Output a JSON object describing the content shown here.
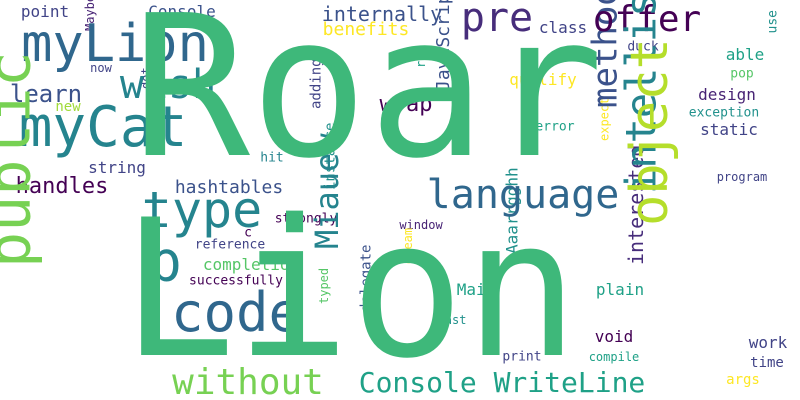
{
  "colors": {
    "background": "#ffffff",
    "palette": [
      "#3eb87a",
      "#30678d",
      "#25848e",
      "#440154",
      "#b5de2b",
      "#77d153",
      "#3b528b",
      "#472d7b",
      "#1fa187",
      "#56c667",
      "#fde725",
      "#a0da39",
      "#414487",
      "#21918c",
      "#482475"
    ]
  },
  "words": [
    {
      "text": "Roar"
    },
    {
      "text": "Lion"
    },
    {
      "text": "myLion"
    },
    {
      "text": "myCat"
    },
    {
      "text": "language"
    },
    {
      "text": "object"
    },
    {
      "text": "code"
    },
    {
      "text": "type"
    },
    {
      "text": "public"
    },
    {
      "text": "strong"
    },
    {
      "text": "p"
    },
    {
      "text": "intellisense"
    },
    {
      "text": "offer"
    },
    {
      "text": "method"
    },
    {
      "text": "pre"
    },
    {
      "text": "without"
    },
    {
      "text": "Console WriteLine"
    },
    {
      "text": "Miauew"
    },
    {
      "text": "wish"
    },
    {
      "text": "internally"
    },
    {
      "text": "handles"
    },
    {
      "text": "hashtables"
    },
    {
      "text": "learn"
    },
    {
      "text": "JavaScript"
    },
    {
      "text": "interested"
    },
    {
      "text": "benefits"
    },
    {
      "text": "wrap"
    },
    {
      "text": "design"
    },
    {
      "text": "Console"
    },
    {
      "text": "point"
    },
    {
      "text": "completion"
    },
    {
      "text": "Main"
    },
    {
      "text": "plain"
    },
    {
      "text": "static"
    },
    {
      "text": "qualify"
    },
    {
      "text": "work"
    },
    {
      "text": "void"
    },
    {
      "text": "time"
    },
    {
      "text": "args"
    },
    {
      "text": "delegate"
    },
    {
      "text": "instance"
    },
    {
      "text": "Aaarrgghh"
    },
    {
      "text": "class"
    },
    {
      "text": "able"
    },
    {
      "text": "string"
    },
    {
      "text": "exception"
    },
    {
      "text": "adding"
    },
    {
      "text": "duck"
    },
    {
      "text": "pop"
    },
    {
      "text": "error"
    },
    {
      "text": "new"
    },
    {
      "text": "now"
    },
    {
      "text": "dot"
    },
    {
      "text": "Maybe"
    },
    {
      "text": "use"
    },
    {
      "text": "run"
    },
    {
      "text": "expect"
    },
    {
      "text": "program"
    },
    {
      "text": "window"
    },
    {
      "text": "strongly"
    },
    {
      "text": "reference"
    },
    {
      "text": "successfully"
    },
    {
      "text": "hit"
    },
    {
      "text": "dream"
    },
    {
      "text": "typed"
    },
    {
      "text": "cast"
    },
    {
      "text": "print"
    },
    {
      "text": "compile"
    },
    {
      "text": "c"
    }
  ]
}
